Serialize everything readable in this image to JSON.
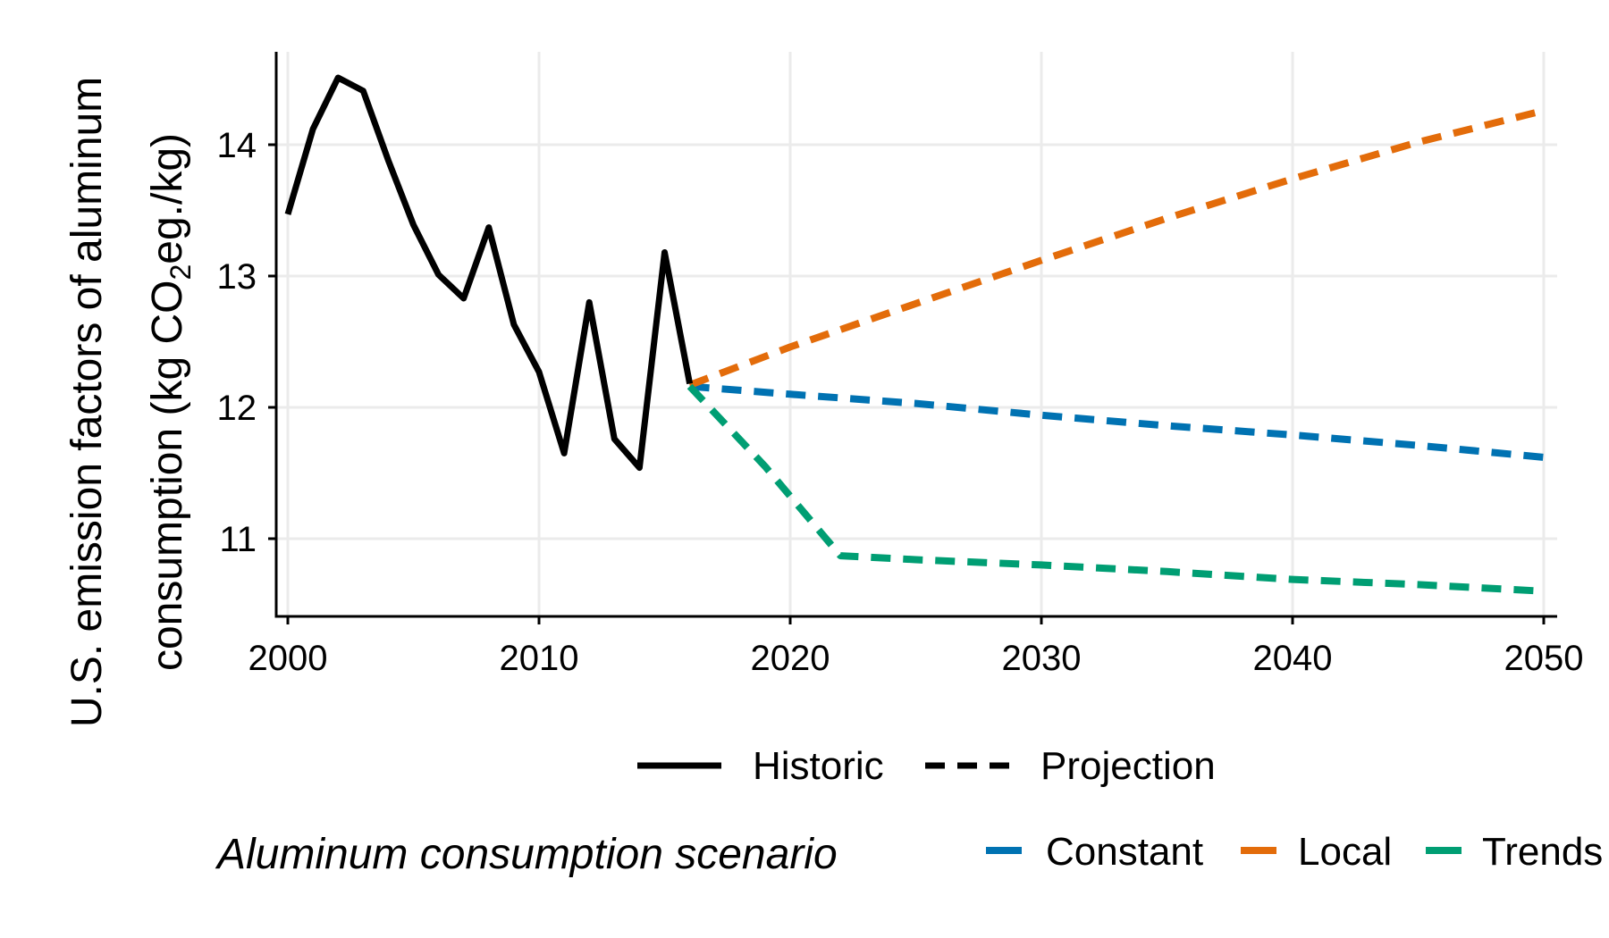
{
  "chart_data": {
    "type": "line",
    "ylabel_line1": "U.S. emission factors of aluminum",
    "ylabel_line2_pre": "consumption (kg CO",
    "ylabel_line2_sub": "2",
    "ylabel_line2_post": "eg./kg)",
    "xlabel": "",
    "xlim": [
      2000,
      2050
    ],
    "ylim": [
      10.4,
      14.7
    ],
    "x_ticks": [
      "2000",
      "2010",
      "2020",
      "2030",
      "2040",
      "2050"
    ],
    "y_ticks": [
      "11",
      "12",
      "13",
      "14"
    ],
    "grid": true,
    "linetype_legend": {
      "items": [
        {
          "label": "Historic",
          "style": "solid"
        },
        {
          "label": "Projection",
          "style": "dashed"
        }
      ]
    },
    "color_legend": {
      "title": "Aluminum consumption scenario",
      "items": [
        {
          "label": "Constant",
          "color": "#0072B2"
        },
        {
          "label": "Local",
          "color": "#E36C0A"
        },
        {
          "label": "Trends",
          "color": "#009E73"
        }
      ]
    },
    "series": [
      {
        "name": "Historic",
        "style": "solid",
        "color": "#000000",
        "points": [
          [
            2000,
            13.47
          ],
          [
            2001,
            14.12
          ],
          [
            2002,
            14.51
          ],
          [
            2003,
            14.41
          ],
          [
            2004,
            13.88
          ],
          [
            2005,
            13.39
          ],
          [
            2006,
            13.01
          ],
          [
            2007,
            12.83
          ],
          [
            2008,
            13.37
          ],
          [
            2009,
            12.63
          ],
          [
            2010,
            12.27
          ],
          [
            2011,
            11.65
          ],
          [
            2012,
            12.8
          ],
          [
            2013,
            11.76
          ],
          [
            2014,
            11.54
          ],
          [
            2015,
            13.18
          ],
          [
            2016,
            12.18
          ]
        ]
      },
      {
        "name": "Constant",
        "style": "dashed",
        "color": "#0072B2",
        "points": [
          [
            2016,
            12.16
          ],
          [
            2020,
            12.1
          ],
          [
            2025,
            12.03
          ],
          [
            2030,
            11.94
          ],
          [
            2035,
            11.86
          ],
          [
            2040,
            11.79
          ],
          [
            2045,
            11.71
          ],
          [
            2050,
            11.62
          ]
        ]
      },
      {
        "name": "Local",
        "style": "dashed",
        "color": "#E36C0A",
        "points": [
          [
            2016,
            12.17
          ],
          [
            2020,
            12.46
          ],
          [
            2025,
            12.79
          ],
          [
            2030,
            13.12
          ],
          [
            2035,
            13.44
          ],
          [
            2040,
            13.74
          ],
          [
            2045,
            14.02
          ],
          [
            2050,
            14.26
          ]
        ]
      },
      {
        "name": "Trends",
        "style": "dashed",
        "color": "#009E73",
        "points": [
          [
            2016,
            12.16
          ],
          [
            2019,
            11.55
          ],
          [
            2022,
            10.87
          ],
          [
            2025,
            10.84
          ],
          [
            2030,
            10.8
          ],
          [
            2035,
            10.75
          ],
          [
            2040,
            10.69
          ],
          [
            2045,
            10.65
          ],
          [
            2050,
            10.6
          ]
        ]
      }
    ]
  }
}
